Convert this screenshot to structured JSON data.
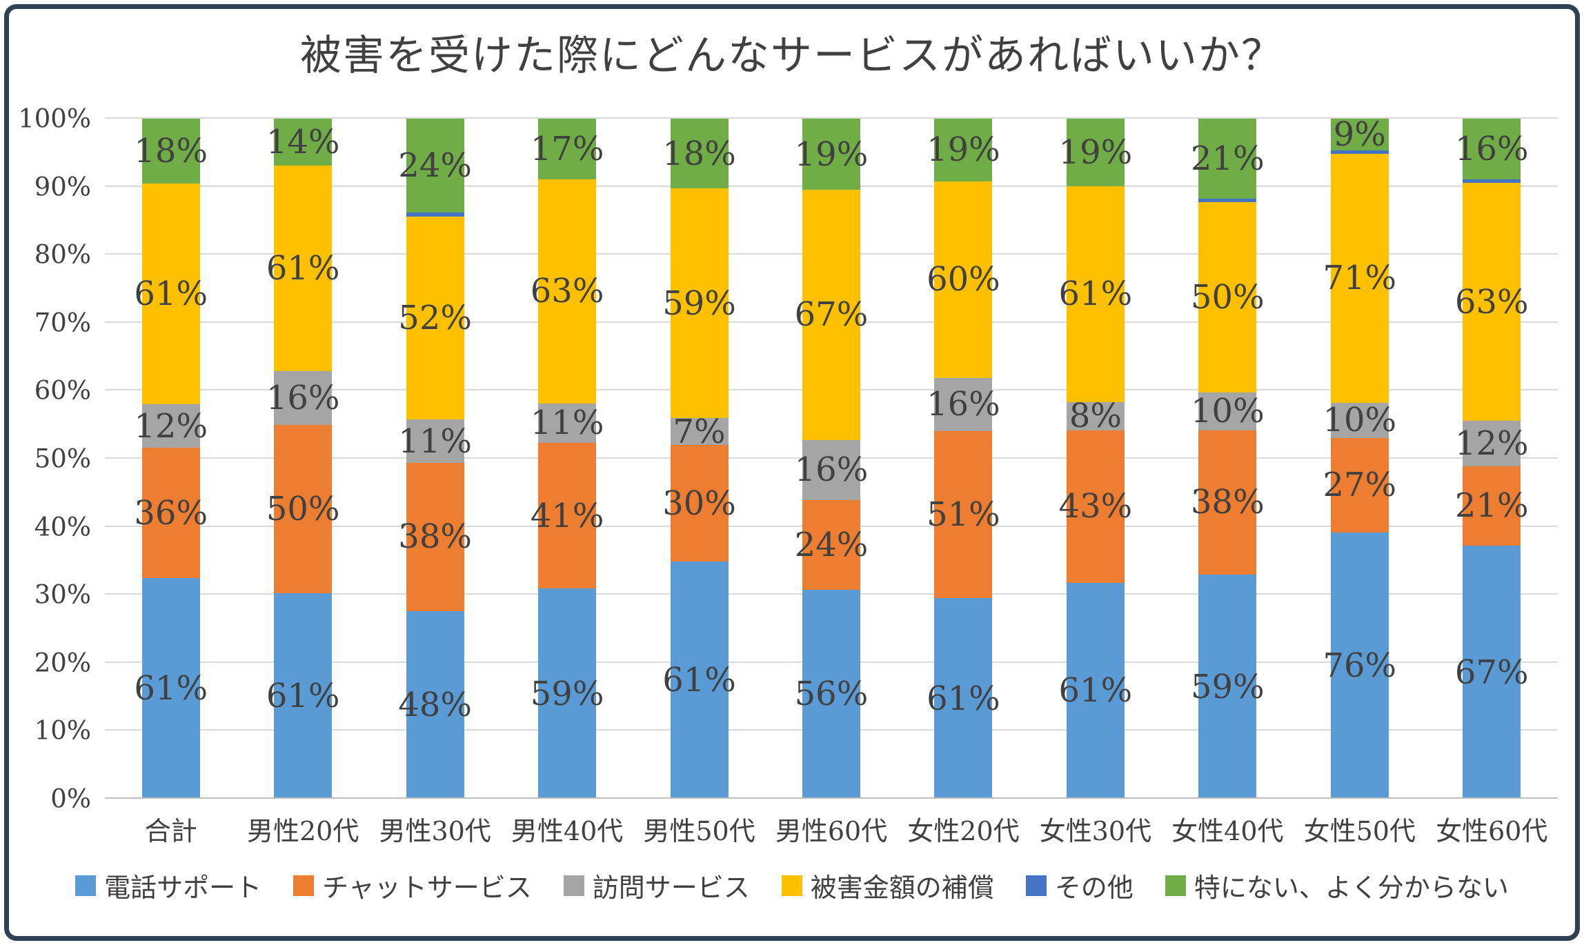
{
  "frame": {
    "border_color": "#2e4053",
    "background": "#ffffff"
  },
  "chart_data": {
    "type": "bar",
    "subtype": "stacked-100-percent",
    "title": "被害を受けた際にどんなサービスがあればいいか？",
    "categories": [
      "合計",
      "男性20代",
      "男性30代",
      "男性40代",
      "男性50代",
      "男性60代",
      "女性20代",
      "女性30代",
      "女性40代",
      "女性50代",
      "女性60代"
    ],
    "series": [
      {
        "key": "phone-support",
        "name": "電話サポート",
        "color": "#5b9bd5",
        "values": [
          61,
          61,
          48,
          59,
          61,
          56,
          61,
          61,
          59,
          76,
          67
        ]
      },
      {
        "key": "chat-service",
        "name": "チャットサービス",
        "color": "#ed7d31",
        "values": [
          36,
          50,
          38,
          41,
          30,
          24,
          51,
          43,
          38,
          27,
          21
        ]
      },
      {
        "key": "visit-service",
        "name": "訪問サービス",
        "color": "#a5a5a5",
        "values": [
          12,
          16,
          11,
          11,
          7,
          16,
          16,
          8,
          10,
          10,
          12
        ]
      },
      {
        "key": "damage-compensation",
        "name": "被害金額の補償",
        "color": "#ffc000",
        "values": [
          61,
          61,
          52,
          63,
          59,
          67,
          60,
          61,
          50,
          71,
          63
        ]
      },
      {
        "key": "other",
        "name": "その他",
        "color": "#4472c4",
        "values": [
          0,
          0,
          1,
          0,
          0,
          0,
          0,
          0,
          1,
          1,
          1
        ],
        "show_labels": false
      },
      {
        "key": "none-unknown",
        "name": "特にない、よく分からない",
        "color": "#70ad47",
        "values": [
          18,
          14,
          24,
          17,
          18,
          19,
          19,
          19,
          21,
          9,
          16
        ]
      }
    ],
    "y_axis": {
      "min": 0,
      "max": 100,
      "tick_labels": [
        "0%",
        "10%",
        "20%",
        "30%",
        "40%",
        "50%",
        "60%",
        "70%",
        "80%",
        "90%",
        "100%"
      ],
      "grid": true
    },
    "legend_position": "bottom",
    "bars_normalized_to_100": true,
    "label_suffix": "%"
  }
}
